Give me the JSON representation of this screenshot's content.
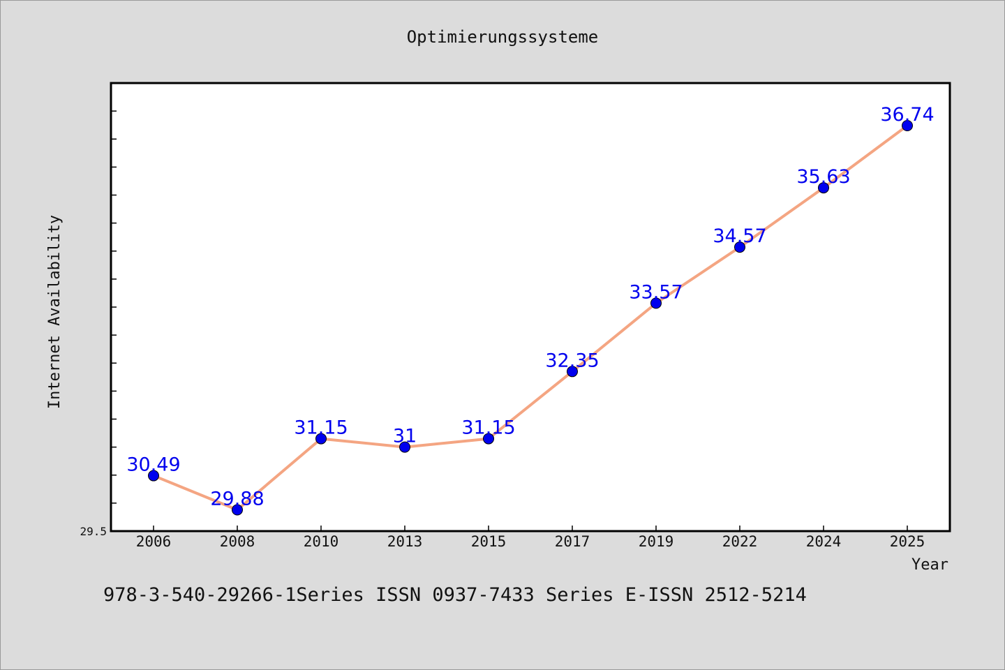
{
  "chart_data": {
    "type": "line",
    "title": "Optimierungssysteme",
    "xlabel": "Year",
    "ylabel": "Internet Availability",
    "categories": [
      "2006",
      "2008",
      "2010",
      "2013",
      "2015",
      "2017",
      "2019",
      "2022",
      "2024",
      "2025"
    ],
    "values": [
      30.49,
      29.88,
      31.15,
      31,
      31.15,
      32.35,
      33.57,
      34.57,
      35.63,
      36.74
    ],
    "data_labels": [
      "30.49",
      "29.88",
      "31.15",
      "31",
      "31.15",
      "32.35",
      "33.57",
      "34.57",
      "35.63",
      "36.74"
    ],
    "y_min_label": "29.5",
    "ylim": [
      29.5,
      37.5
    ],
    "grid": false,
    "line_color": "#f4a582",
    "marker_color": "#0000ee",
    "label_color": "#0000ee"
  },
  "footer_text": "978-3-540-29266-1Series ISSN 0937-7433 Series E-ISSN 2512-5214"
}
